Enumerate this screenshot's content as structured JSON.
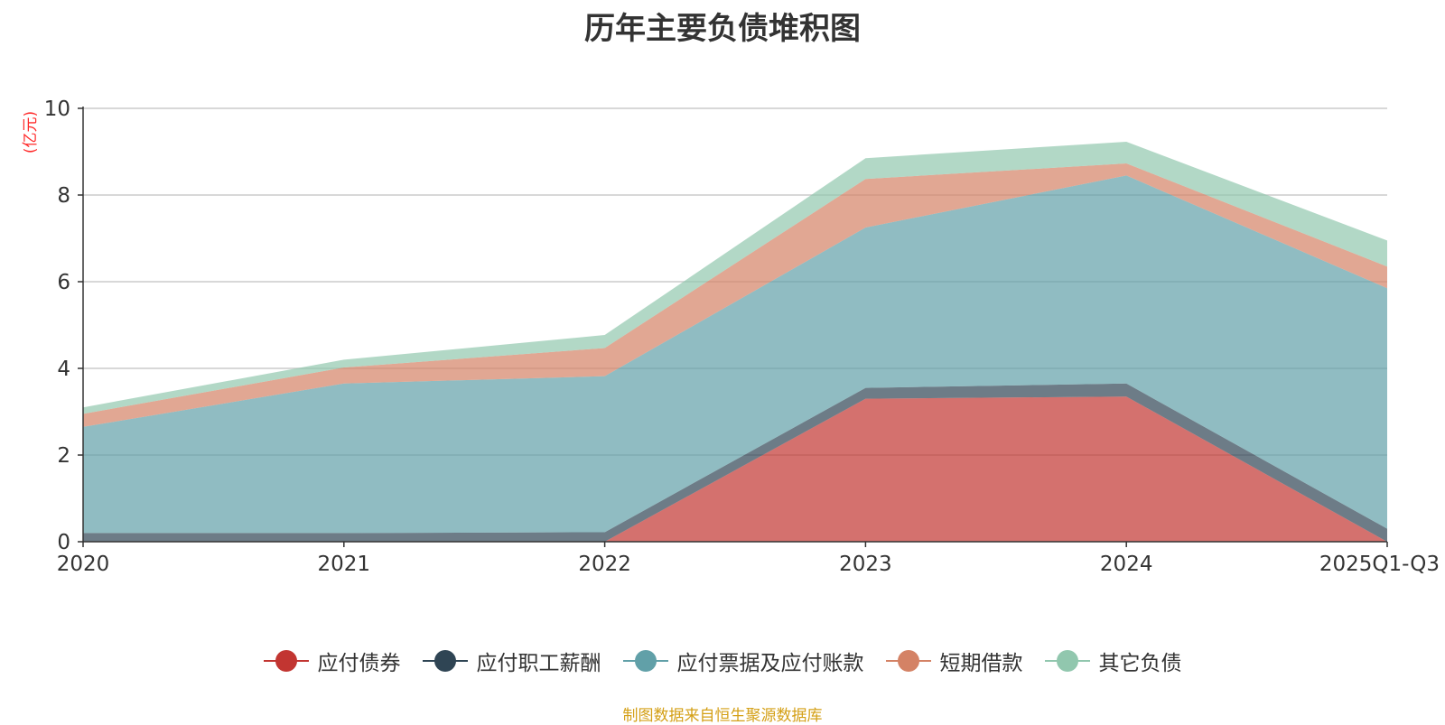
{
  "chart_data": {
    "type": "area",
    "stacked": true,
    "title": "历年主要负债堆积图",
    "ylabel": "(亿元)",
    "xlabel": "",
    "categories": [
      "2020",
      "2021",
      "2022",
      "2023",
      "2024",
      "2025Q1-Q3"
    ],
    "ylim": [
      0,
      10
    ],
    "yticks": [
      0,
      2,
      4,
      6,
      8,
      10
    ],
    "grid": true,
    "legend_position": "bottom",
    "series": [
      {
        "name": "应付债券",
        "color": "#c23531",
        "values": [
          0,
          0,
          0,
          3.3,
          3.35,
          0
        ]
      },
      {
        "name": "应付职工薪酬",
        "color": "#2f4554",
        "values": [
          0.2,
          0.2,
          0.22,
          0.25,
          0.3,
          0.3
        ]
      },
      {
        "name": "应付票据及应付账款",
        "color": "#61a0a8",
        "values": [
          2.45,
          3.45,
          3.6,
          3.7,
          4.8,
          5.55
        ]
      },
      {
        "name": "短期借款",
        "color": "#d48265",
        "values": [
          0.3,
          0.37,
          0.65,
          1.12,
          0.28,
          0.5
        ]
      },
      {
        "name": "其它负债",
        "color": "#91c7ae",
        "values": [
          0.15,
          0.18,
          0.3,
          0.48,
          0.5,
          0.6
        ]
      }
    ]
  },
  "source_note": "制图数据来自恒生聚源数据库"
}
